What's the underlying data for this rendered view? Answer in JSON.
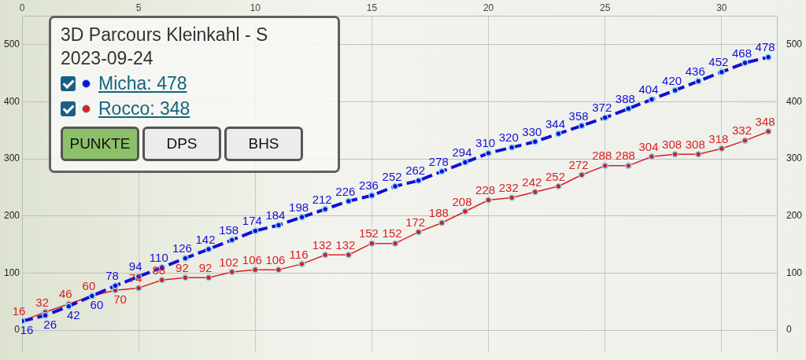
{
  "chart_data": {
    "type": "line",
    "title": "3D Parcours Kleinkahl - S",
    "subtitle": "2023-09-24",
    "x": [
      0,
      1,
      2,
      3,
      4,
      5,
      6,
      7,
      8,
      9,
      10,
      11,
      12,
      13,
      14,
      15,
      16,
      17,
      18,
      19,
      20,
      21,
      22,
      23,
      24,
      25,
      26,
      27,
      28,
      29,
      30,
      31,
      32
    ],
    "series": [
      {
        "name": "Micha: 478",
        "color": "#1010d8",
        "line_style": "dashed",
        "values": [
          16,
          26,
          42,
          60,
          78,
          94,
          110,
          126,
          142,
          158,
          174,
          184,
          198,
          212,
          226,
          236,
          252,
          262,
          278,
          294,
          310,
          320,
          330,
          344,
          358,
          372,
          388,
          404,
          420,
          436,
          452,
          468,
          478
        ]
      },
      {
        "name": "Rocco: 348",
        "color": "#d82020",
        "line_style": "solid",
        "values": [
          16,
          32,
          46,
          60,
          70,
          74,
          88,
          92,
          92,
          102,
          106,
          106,
          116,
          132,
          132,
          152,
          152,
          172,
          188,
          208,
          228,
          232,
          242,
          252,
          272,
          288,
          288,
          304,
          308,
          308,
          318,
          332,
          348
        ]
      }
    ],
    "xlim": [
      0,
      32.4
    ],
    "xticks": [
      0,
      5,
      10,
      15,
      20,
      25,
      30
    ],
    "ylim": [
      -38,
      550
    ],
    "yticks": [
      0,
      100,
      200,
      300,
      400,
      500
    ],
    "y2lim": [
      -38,
      550
    ],
    "y2ticks": [
      0,
      100,
      200,
      300,
      400,
      500
    ],
    "grid": true,
    "legend": "top left",
    "marker": "circle",
    "data_labels": true,
    "annotations": [
      "PUNKTE",
      "DPS",
      "BHS"
    ]
  }
}
